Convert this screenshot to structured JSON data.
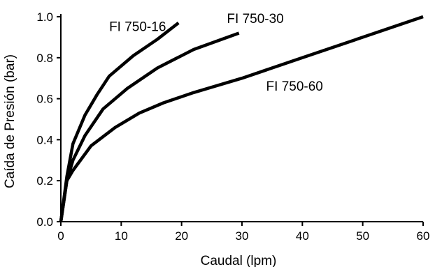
{
  "top_caption": "",
  "chart_data": {
    "type": "line",
    "title": "",
    "xlabel": "Caudal (lpm)",
    "ylabel": "Caída de Presión (bar)",
    "xlim": [
      0,
      60
    ],
    "ylim": [
      0,
      1.0
    ],
    "x_ticks": [
      "0",
      "10",
      "20",
      "30",
      "40",
      "50",
      "60"
    ],
    "y_ticks": [
      "0.0",
      "0.2",
      "0.4",
      "0.6",
      "0.8",
      "1.0"
    ],
    "grid": false,
    "legend": "none",
    "series": [
      {
        "name": "FI 750-16",
        "x": [
          0,
          1,
          2,
          4,
          6,
          8,
          12,
          16,
          19.5
        ],
        "y": [
          0,
          0.22,
          0.38,
          0.52,
          0.62,
          0.71,
          0.81,
          0.89,
          0.97
        ]
      },
      {
        "name": "FI 750-30",
        "x": [
          0,
          1,
          2,
          4,
          7,
          11,
          16,
          22,
          29.5
        ],
        "y": [
          0,
          0.2,
          0.3,
          0.42,
          0.55,
          0.65,
          0.75,
          0.84,
          0.92
        ]
      },
      {
        "name": "FI 750-60",
        "x": [
          0,
          1,
          2,
          5,
          9,
          13,
          17,
          22,
          30,
          40,
          50,
          60
        ],
        "y": [
          0,
          0.2,
          0.25,
          0.37,
          0.46,
          0.53,
          0.58,
          0.63,
          0.7,
          0.8,
          0.9,
          1.0
        ]
      }
    ],
    "series_label_positions": [
      {
        "x": 8.0,
        "y": 0.93
      },
      {
        "x": 27.5,
        "y": 0.97
      },
      {
        "x": 34.0,
        "y": 0.64
      }
    ],
    "line_color": "#000000"
  }
}
